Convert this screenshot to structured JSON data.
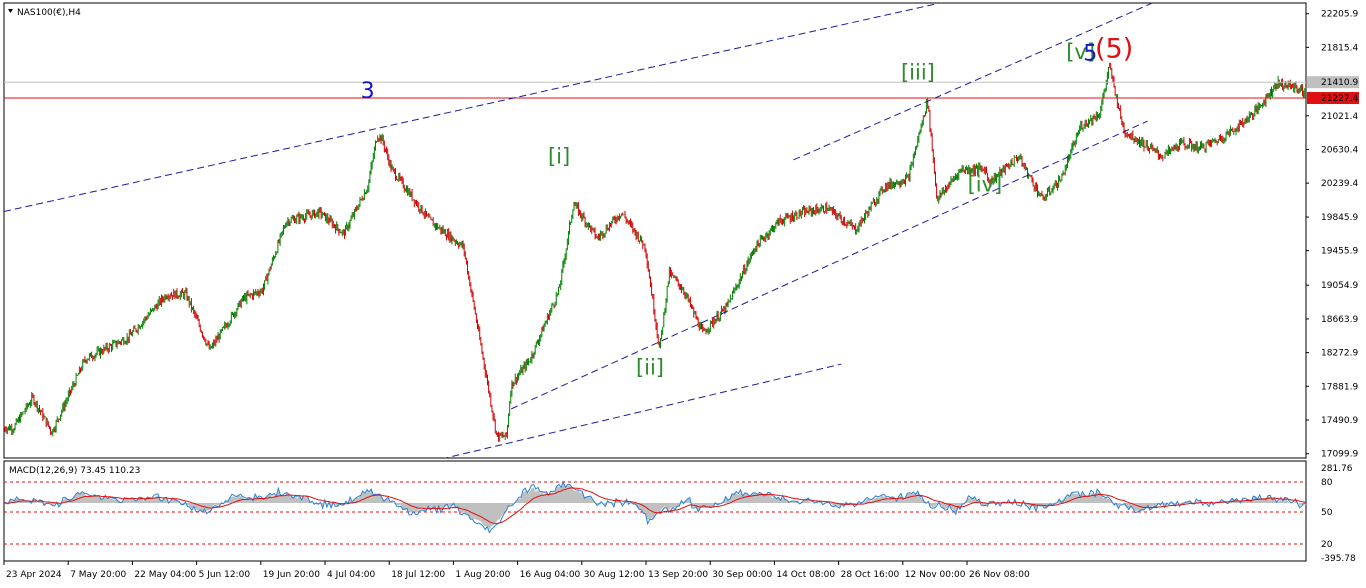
{
  "header": {
    "symbol": "NAS100(€),H4",
    "macd_label": "MACD(12,26,9) 73.45 110.23"
  },
  "colors": {
    "bull": "#008000",
    "bear": "#d00000",
    "wave_green": "#2e8b2e",
    "wave_blue": "#1414c8",
    "wave_red": "#e01010",
    "channel": "#1c1ca0",
    "macd_hist": "#c0c0c0",
    "macd_line": "#2a7fd4",
    "signal_line": "#e01010"
  },
  "chart_data": [
    {
      "type": "candlestick",
      "symbol": "NAS100(€)",
      "timeframe": "H4",
      "y_ticks": [
        "22205.9",
        "21815.4",
        "21021.4",
        "20630.4",
        "20239.4",
        "19845.9",
        "19455.9",
        "19054.9",
        "18663.9",
        "18272.9",
        "17881.9",
        "17490.9",
        "17099.9"
      ],
      "price_labels": [
        {
          "value": "21410.9",
          "meaning": "current bid",
          "color": "#c0c0c0"
        },
        {
          "value": "21227.4",
          "meaning": "horizontal level",
          "color": "#e01010"
        }
      ],
      "x_ticks": [
        "23 Apr 2024",
        "7 May 20:00",
        "22 May 04:00",
        "5 Jun 12:00",
        "19 Jun 20:00",
        "4 Jul 04:00",
        "18 Jul 12:00",
        "1 Aug 20:00",
        "16 Aug 04:00",
        "30 Aug 12:00",
        "13 Sep 20:00",
        "30 Sep 00:00",
        "14 Oct 08:00",
        "28 Oct 16:00",
        "12 Nov 00:00",
        "26 Nov 08:00"
      ],
      "ylim": [
        17050,
        22330
      ],
      "wave_labels": [
        {
          "text": "3",
          "color": "blue",
          "date": "7 Jul 2024",
          "price": 21230
        },
        {
          "text": "[i]",
          "color": "green",
          "date": "16 Aug 2024",
          "price": 20470
        },
        {
          "text": "[ii]",
          "color": "green",
          "date": "4 Sep 2024",
          "price": 18020
        },
        {
          "text": "[iii]",
          "color": "green",
          "date": "30 Oct 2024",
          "price": 21440
        },
        {
          "text": "[iv]",
          "color": "green",
          "date": "13 Nov 2024",
          "price": 20140
        },
        {
          "text": "[v]",
          "color": "green",
          "date": "3 Dec 2024",
          "price": 21680
        },
        {
          "text": "5",
          "color": "blue",
          "date": "5 Dec 2024",
          "price": 21660
        },
        {
          "text": "(5)",
          "color": "red",
          "date": "10 Dec 2024",
          "price": 21700
        }
      ],
      "key_prices": [
        {
          "date": "24 Apr 2024",
          "price": 17400
        },
        {
          "date": "9 Jul 2024",
          "price": 20800
        },
        {
          "date": "5 Aug 2024",
          "price": 17300
        },
        {
          "date": "19 Aug 2024",
          "price": 20000
        },
        {
          "date": "6 Sep 2024",
          "price": 18310
        },
        {
          "date": "1 Nov 2024",
          "price": 21200
        },
        {
          "date": "13 Nov 2024",
          "price": 20400
        },
        {
          "date": "9 Dec 2024",
          "price": 21600
        }
      ],
      "trendlines": [
        {
          "from": {
            "date": "22 Apr 2024",
            "price": 19910
          },
          "to": {
            "date": "10 Dec 2024",
            "price": 22780
          }
        },
        {
          "from": {
            "date": "18 Jul 2024",
            "price": 16980
          },
          "to": {
            "date": "14 Oct 2024",
            "price": 18140
          }
        },
        {
          "from": {
            "date": "6 Aug 2024",
            "price": 17620
          },
          "to": {
            "date": "17 Dec 2024",
            "price": 20960
          }
        },
        {
          "from": {
            "date": "4 Oct 2024",
            "price": 20510
          },
          "to": {
            "date": "25 Dec 2024",
            "price": 22500
          }
        }
      ]
    },
    {
      "type": "line",
      "indicator": "MACD(12,26,9)",
      "macd": 73.45,
      "signal": 110.23,
      "y_ticks": [
        "281.76",
        "80",
        "50",
        "20",
        "-395.78"
      ],
      "levels": [
        80,
        50,
        20
      ]
    }
  ]
}
